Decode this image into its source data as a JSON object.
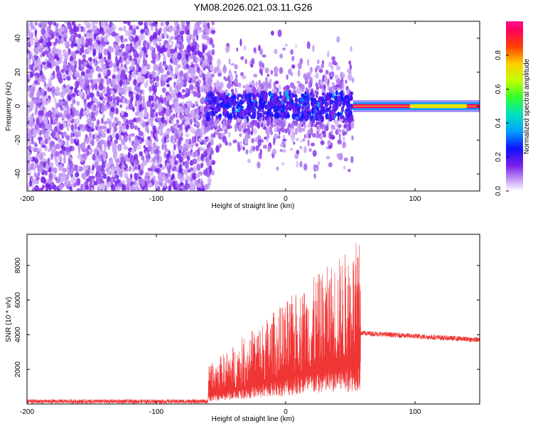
{
  "title": "YM08.2026.021.03.11.G26",
  "chart_data": [
    {
      "type": "heatmap",
      "name": "spectrogram",
      "xlabel": "Height of straight line (km)",
      "ylabel": "Frequency (Hz)",
      "xlim": [
        -200,
        150
      ],
      "ylim": [
        -50,
        50
      ],
      "x_ticks": [
        -200,
        -100,
        0,
        100
      ],
      "y_ticks": [
        -40,
        -20,
        0,
        20,
        40
      ],
      "colorbar": {
        "label": "Normalized spectral amplitude",
        "range": [
          0,
          1
        ],
        "ticks": [
          "0.0",
          "0.2",
          "0.4",
          "0.6",
          "0.8"
        ]
      },
      "regions": [
        {
          "x_from": -200,
          "x_to": -62,
          "description_level": "diffuse_noise",
          "amplitude": 0.08
        },
        {
          "x_from": -62,
          "x_to": 52,
          "description_level": "scattered_signal",
          "amplitude": 0.15,
          "freq_center": 0,
          "freq_spread": 20
        },
        {
          "x_from": 52,
          "x_to": 150,
          "description_level": "narrow_line",
          "amplitude": 0.95,
          "freq_center": 0,
          "freq_spread": 2
        }
      ]
    },
    {
      "type": "line",
      "name": "snr",
      "xlabel": "Height of straight line (km)",
      "ylabel": "SNR (10 * v/v)",
      "xlim": [
        -200,
        150
      ],
      "ylim": [
        0,
        9800
      ],
      "x_ticks": [
        -200,
        -100,
        0,
        100
      ],
      "y_ticks": [
        2000,
        4000,
        6000,
        8000
      ],
      "color": "#f03535",
      "segments": [
        {
          "x_from": -200,
          "x_to": -60,
          "base": 150,
          "noise": 120
        },
        {
          "x_from": -60,
          "x_to": 58,
          "base_start": 500,
          "base_end": 2500,
          "peak_start": 2200,
          "peak_end": 9600
        },
        {
          "x_from": 58,
          "x_to": 150,
          "base_start": 4100,
          "base_end": 3700,
          "noise": 250
        }
      ]
    }
  ]
}
